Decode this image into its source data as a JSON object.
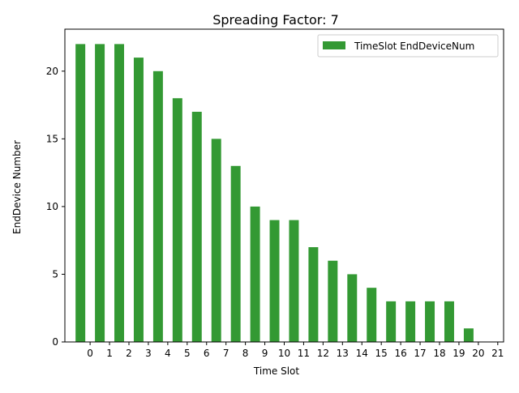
{
  "chart_data": {
    "type": "bar",
    "title": "Spreading Factor: 7",
    "xlabel": "Time Slot",
    "ylabel": "EndDevice Number",
    "categories": [
      "0",
      "1",
      "2",
      "3",
      "4",
      "5",
      "6",
      "7",
      "8",
      "9",
      "10",
      "11",
      "12",
      "13",
      "14",
      "15",
      "16",
      "17",
      "18",
      "19",
      "20",
      "21"
    ],
    "series": [
      {
        "name": "TimeSlot EndDeviceNum",
        "color": "#339933",
        "values": [
          22,
          22,
          22,
          21,
          20,
          18,
          17,
          15,
          13,
          10,
          9,
          9,
          7,
          6,
          5,
          4,
          3,
          3,
          3,
          3,
          1,
          0
        ]
      }
    ],
    "bar_offset": -0.5,
    "yticks": [
      0,
      5,
      10,
      15,
      20
    ],
    "ylim": [
      0,
      23.1
    ],
    "xlim": [
      -1.3,
      21.3
    ],
    "legend_position": "top-right",
    "grid": false
  }
}
